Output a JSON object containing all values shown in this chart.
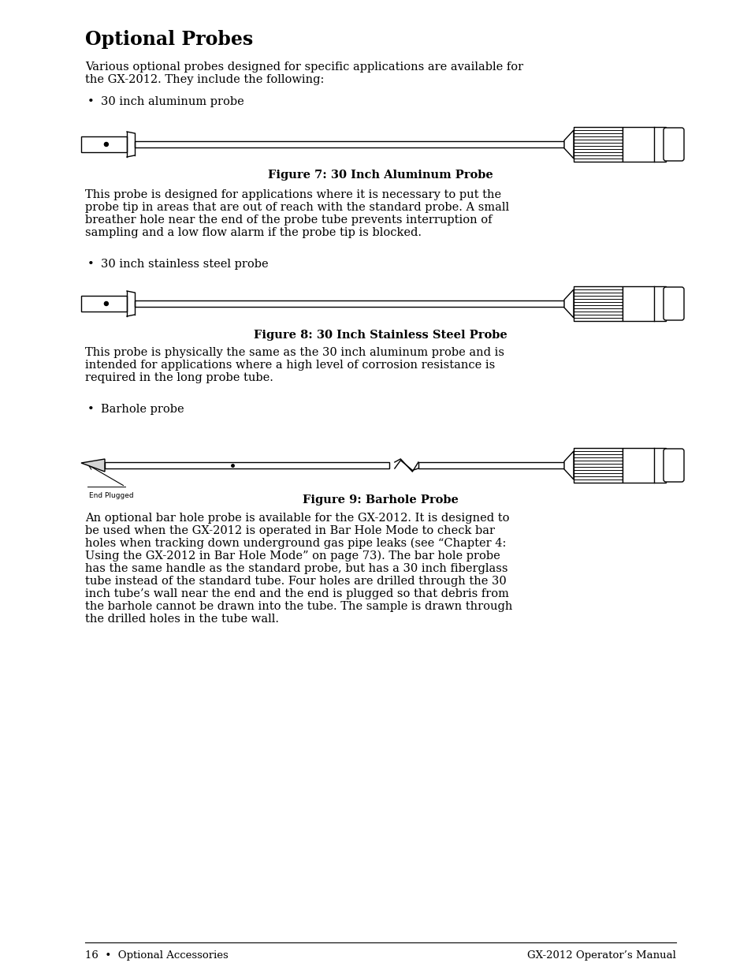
{
  "title": "Optional Probes",
  "bg_color": "#ffffff",
  "text_color": "#000000",
  "footer_left": "16  •  Optional Accessories",
  "footer_right": "GX-2012 Operator’s Manual",
  "intro_line1": "Various optional probes designed for specific applications are available for",
  "intro_line2": "the GX-2012. They include the following:",
  "bullet1": "30 inch aluminum probe",
  "fig1_caption": "Figure 7: 30 Inch Aluminum Probe",
  "text1_lines": [
    "This probe is designed for applications where it is necessary to put the",
    "probe tip in areas that are out of reach with the standard probe. A small",
    "breather hole near the end of the probe tube prevents interruption of",
    "sampling and a low flow alarm if the probe tip is blocked."
  ],
  "bullet2": "30 inch stainless steel probe",
  "fig2_caption": "Figure 8: 30 Inch Stainless Steel Probe",
  "text2_lines": [
    "This probe is physically the same as the 30 inch aluminum probe and is",
    "intended for applications where a high level of corrosion resistance is",
    "required in the long probe tube."
  ],
  "bullet3": "Barhole probe",
  "end_plugged_label": "End Plugged",
  "fig3_caption": "Figure 9: Barhole Probe",
  "text3_lines": [
    "An optional bar hole probe is available for the GX-2012. It is designed to",
    "be used when the GX-2012 is operated in Bar Hole Mode to check bar",
    "holes when tracking down underground gas pipe leaks (see “Chapter 4:",
    "Using the GX-2012 in Bar Hole Mode” on page 73). The bar hole probe",
    "has the same handle as the standard probe, but has a 30 inch fiberglass",
    "tube instead of the standard tube. Four holes are drilled through the 30",
    "inch tube’s wall near the end and the end is plugged so that debris from",
    "the barhole cannot be drawn into the tube. The sample is drawn through",
    "the drilled holes in the tube wall."
  ]
}
